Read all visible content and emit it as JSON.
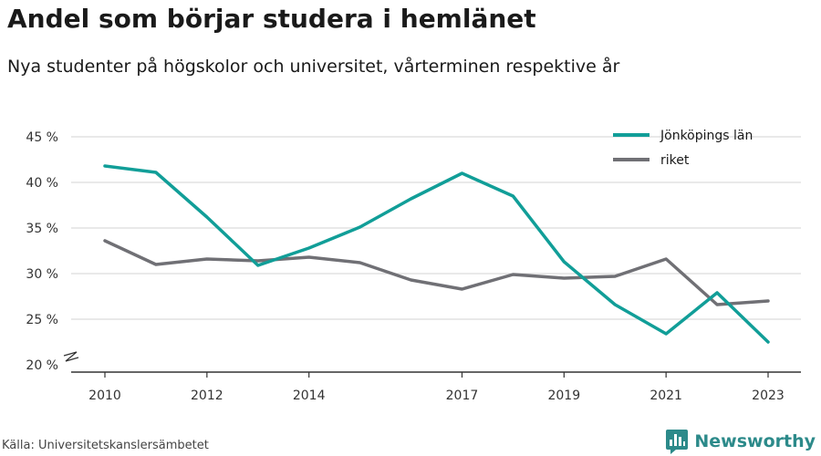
{
  "header": {
    "title": "Andel som börjar studera i hemlänet",
    "subtitle": "Nya studenter på högskolor och universitet, vårterminen respektive år"
  },
  "footer": {
    "source": "Källa: Universitetskanslersämbetet",
    "brand": "Newsworthy",
    "brand_icon": "bar-chart-logo-icon",
    "brand_color": "#2c8a8a"
  },
  "chart_data": {
    "type": "line",
    "x": [
      2010,
      2011,
      2012,
      2013,
      2014,
      2015,
      2016,
      2017,
      2018,
      2019,
      2020,
      2021,
      2022,
      2023
    ],
    "x_tick_labels": [
      "2010",
      "2012",
      "2014",
      "2017",
      "2019",
      "2021",
      "2023"
    ],
    "y_tick_labels": [
      "20 %",
      "25 %",
      "30 %",
      "35 %",
      "40 %",
      "45 %"
    ],
    "y_ticks": [
      20,
      25,
      30,
      35,
      40,
      45
    ],
    "ylim": [
      20,
      45
    ],
    "xlim": [
      2010,
      2023
    ],
    "y_axis_break": true,
    "grid": true,
    "legend_position": "top-right",
    "series": [
      {
        "name": "Jönköpings län",
        "color": "#119e98",
        "values": [
          41.8,
          41.1,
          36.2,
          30.9,
          32.8,
          35.1,
          38.2,
          41.0,
          38.5,
          31.3,
          26.6,
          23.4,
          27.9,
          22.5
        ]
      },
      {
        "name": "riket",
        "color": "#707075",
        "values": [
          33.6,
          31.0,
          31.6,
          31.4,
          31.8,
          31.2,
          29.3,
          28.3,
          29.9,
          29.5,
          29.7,
          31.6,
          26.6,
          27.0
        ]
      }
    ]
  }
}
